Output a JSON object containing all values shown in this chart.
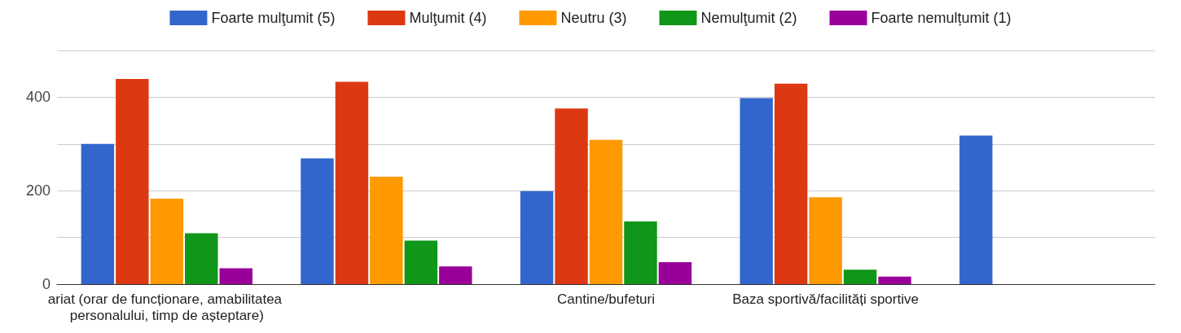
{
  "chart_data": {
    "type": "bar",
    "categories": [
      "ariat (orar de funcționare, amabilitatea personalului, timp de așteptare)",
      null,
      "Cantine/bufeturi",
      "Baza sportivă/facilități sportive",
      null
    ],
    "series": [
      {
        "name": "Foarte mulţumit (5)",
        "color": "#3366cc",
        "values": [
          300,
          269,
          199,
          398,
          318
        ]
      },
      {
        "name": "Mulţumit (4)",
        "color": "#dc3912",
        "values": [
          439,
          433,
          376,
          429,
          null
        ]
      },
      {
        "name": "Neutru (3)",
        "color": "#ff9900",
        "values": [
          183,
          230,
          309,
          186,
          null
        ]
      },
      {
        "name": "Nemulţumit (2)",
        "color": "#109618",
        "values": [
          109,
          93,
          134,
          31,
          null
        ]
      },
      {
        "name": "Foarte nemulțumit (1)",
        "color": "#990099",
        "values": [
          34,
          38,
          47,
          16,
          null
        ]
      }
    ],
    "ylim": [
      0,
      500
    ],
    "yticks": [
      0,
      {
        "value": 100,
        "label": null
      },
      200,
      {
        "value": 300,
        "label": null
      },
      400,
      {
        "value": 500,
        "label": null
      }
    ],
    "grid": "y",
    "legend": "top"
  }
}
